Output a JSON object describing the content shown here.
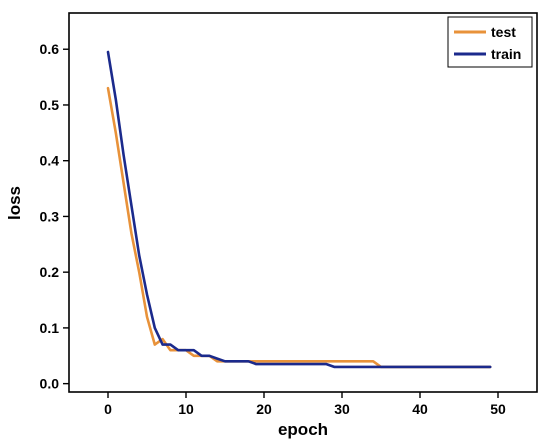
{
  "chart_data": {
    "type": "line",
    "title": "",
    "xlabel": "epoch",
    "ylabel": "loss",
    "xlim": [
      -5,
      55
    ],
    "ylim": [
      -0.015,
      0.665
    ],
    "xticks": [
      0,
      10,
      20,
      30,
      40,
      50
    ],
    "yticks": [
      0.0,
      0.1,
      0.2,
      0.3,
      0.4,
      0.5,
      0.6
    ],
    "xtick_labels": [
      "0",
      "10",
      "20",
      "30",
      "40",
      "50"
    ],
    "ytick_labels": [
      "0.0",
      "0.1",
      "0.2",
      "0.3",
      "0.4",
      "0.5",
      "0.6"
    ],
    "grid": false,
    "legend_position": "top-right",
    "series": [
      {
        "name": "test",
        "color": "#E8923A",
        "x": [
          0,
          1,
          2,
          3,
          4,
          5,
          6,
          7,
          8,
          9,
          10,
          11,
          12,
          13,
          14,
          15,
          16,
          17,
          18,
          19,
          20,
          21,
          22,
          23,
          24,
          25,
          26,
          27,
          28,
          29,
          30,
          31,
          32,
          33,
          34,
          35,
          36,
          37,
          38,
          39,
          40,
          41,
          42,
          43,
          44,
          45,
          46,
          47,
          48,
          49
        ],
        "values": [
          0.53,
          0.45,
          0.36,
          0.27,
          0.2,
          0.12,
          0.07,
          0.08,
          0.06,
          0.06,
          0.06,
          0.05,
          0.05,
          0.05,
          0.04,
          0.04,
          0.04,
          0.04,
          0.04,
          0.04,
          0.04,
          0.04,
          0.04,
          0.04,
          0.04,
          0.04,
          0.04,
          0.04,
          0.04,
          0.04,
          0.04,
          0.04,
          0.04,
          0.04,
          0.04,
          0.03,
          0.03,
          0.03,
          0.03,
          0.03,
          0.03,
          0.03,
          0.03,
          0.03,
          0.03,
          0.03,
          0.03,
          0.03,
          0.03,
          0.03
        ]
      },
      {
        "name": "train",
        "color": "#1B2A8C",
        "x": [
          0,
          1,
          2,
          3,
          4,
          5,
          6,
          7,
          8,
          9,
          10,
          11,
          12,
          13,
          14,
          15,
          16,
          17,
          18,
          19,
          20,
          21,
          22,
          23,
          24,
          25,
          26,
          27,
          28,
          29,
          30,
          31,
          32,
          33,
          34,
          35,
          36,
          37,
          38,
          39,
          40,
          41,
          42,
          43,
          44,
          45,
          46,
          47,
          48,
          49
        ],
        "values": [
          0.595,
          0.51,
          0.41,
          0.32,
          0.23,
          0.16,
          0.1,
          0.07,
          0.07,
          0.06,
          0.06,
          0.06,
          0.05,
          0.05,
          0.045,
          0.04,
          0.04,
          0.04,
          0.04,
          0.035,
          0.035,
          0.035,
          0.035,
          0.035,
          0.035,
          0.035,
          0.035,
          0.035,
          0.035,
          0.03,
          0.03,
          0.03,
          0.03,
          0.03,
          0.03,
          0.03,
          0.03,
          0.03,
          0.03,
          0.03,
          0.03,
          0.03,
          0.03,
          0.03,
          0.03,
          0.03,
          0.03,
          0.03,
          0.03,
          0.03
        ]
      }
    ]
  }
}
